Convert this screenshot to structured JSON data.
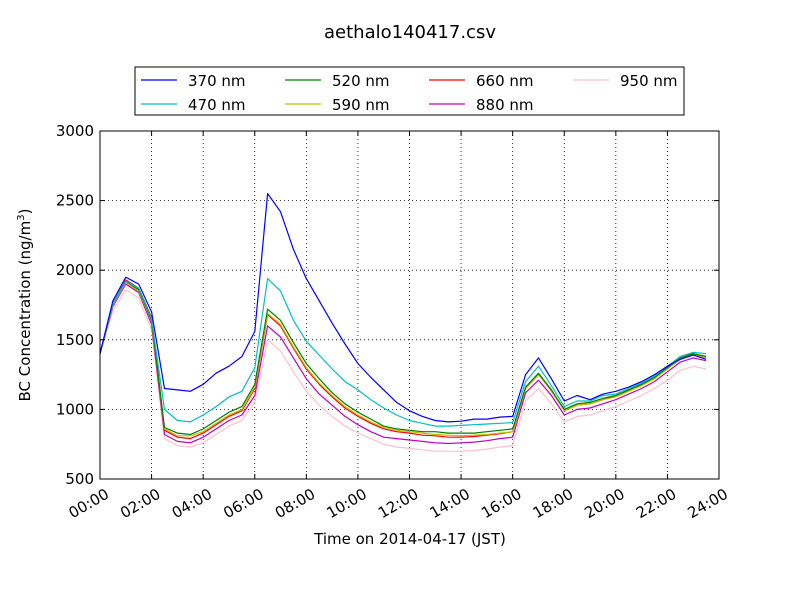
{
  "chart_data": {
    "type": "line",
    "title": "aethalo140417.csv",
    "xlabel": "Time on 2014-04-17 (JST)",
    "ylabel": "BC Concentration (ng/m",
    "ylabel_sup": "3",
    "ylabel_tail": ")",
    "xlim": [
      0,
      24
    ],
    "ylim": [
      500,
      3000
    ],
    "x_ticks": [
      0,
      2,
      4,
      6,
      8,
      10,
      12,
      14,
      16,
      18,
      20,
      22,
      24
    ],
    "x_tick_labels": [
      "00:00",
      "02:00",
      "04:00",
      "06:00",
      "08:00",
      "10:00",
      "12:00",
      "14:00",
      "16:00",
      "18:00",
      "20:00",
      "22:00",
      "24:00"
    ],
    "y_ticks": [
      500,
      1000,
      1500,
      2000,
      2500,
      3000
    ],
    "y_tick_labels": [
      "500",
      "1000",
      "1500",
      "2000",
      "2500",
      "3000"
    ],
    "grid": true,
    "legend_placement": "top-center",
    "x": [
      0,
      0.5,
      1,
      1.5,
      2,
      2.5,
      3,
      3.5,
      4,
      4.5,
      5,
      5.5,
      6,
      6.5,
      7,
      7.5,
      8,
      8.5,
      9,
      9.5,
      10,
      10.5,
      11,
      11.5,
      12,
      12.5,
      13,
      13.5,
      14,
      14.5,
      15,
      15.5,
      16,
      16.5,
      17,
      17.5,
      18,
      18.5,
      19,
      19.5,
      20,
      20.5,
      21,
      21.5,
      22,
      22.5,
      23,
      23.5
    ],
    "series": [
      {
        "name": "370 nm",
        "color": "#0000ff",
        "values": [
          1400,
          1780,
          1950,
          1900,
          1700,
          1150,
          1140,
          1130,
          1180,
          1260,
          1310,
          1380,
          1560,
          2550,
          2420,
          2150,
          1940,
          1780,
          1620,
          1470,
          1330,
          1230,
          1140,
          1050,
          990,
          950,
          920,
          910,
          915,
          930,
          930,
          945,
          950,
          1250,
          1370,
          1220,
          1060,
          1100,
          1070,
          1110,
          1130,
          1160,
          1200,
          1250,
          1310,
          1360,
          1390,
          1360
        ]
      },
      {
        "name": "470 nm",
        "color": "#00bfbf",
        "values": [
          1400,
          1760,
          1920,
          1870,
          1650,
          1000,
          920,
          910,
          960,
          1020,
          1090,
          1130,
          1300,
          1940,
          1850,
          1640,
          1490,
          1390,
          1290,
          1200,
          1140,
          1070,
          1010,
          960,
          920,
          900,
          880,
          880,
          885,
          890,
          895,
          900,
          905,
          1200,
          1310,
          1170,
          1020,
          1060,
          1060,
          1100,
          1110,
          1150,
          1190,
          1240,
          1310,
          1380,
          1410,
          1400
        ]
      },
      {
        "name": "520 nm",
        "color": "#007f00",
        "values": [
          1400,
          1760,
          1920,
          1860,
          1640,
          870,
          830,
          820,
          860,
          920,
          980,
          1020,
          1180,
          1720,
          1640,
          1480,
          1330,
          1220,
          1120,
          1040,
          980,
          930,
          880,
          860,
          850,
          840,
          840,
          830,
          830,
          830,
          840,
          850,
          860,
          1160,
          1260,
          1140,
          1000,
          1040,
          1050,
          1080,
          1100,
          1140,
          1180,
          1230,
          1300,
          1370,
          1400,
          1380
        ]
      },
      {
        "name": "590 nm",
        "color": "#bfbf00",
        "values": [
          1400,
          1750,
          1910,
          1850,
          1630,
          860,
          810,
          810,
          840,
          900,
          960,
          1000,
          1160,
          1690,
          1610,
          1450,
          1300,
          1190,
          1100,
          1020,
          960,
          910,
          870,
          850,
          840,
          830,
          820,
          815,
          810,
          815,
          820,
          830,
          840,
          1150,
          1250,
          1130,
          990,
          1030,
          1040,
          1070,
          1090,
          1130,
          1170,
          1220,
          1290,
          1360,
          1390,
          1370
        ]
      },
      {
        "name": "660 nm",
        "color": "#ff0000",
        "values": [
          1400,
          1760,
          1930,
          1870,
          1660,
          850,
          800,
          790,
          830,
          890,
          950,
          990,
          1150,
          1680,
          1600,
          1440,
          1290,
          1180,
          1090,
          1010,
          950,
          900,
          860,
          840,
          830,
          815,
          810,
          800,
          800,
          805,
          815,
          825,
          840,
          1150,
          1250,
          1140,
          990,
          1030,
          1040,
          1070,
          1100,
          1140,
          1180,
          1230,
          1300,
          1370,
          1400,
          1380
        ]
      },
      {
        "name": "880 nm",
        "color": "#bf00bf",
        "values": [
          1400,
          1740,
          1900,
          1840,
          1610,
          820,
          770,
          760,
          800,
          860,
          920,
          960,
          1100,
          1600,
          1520,
          1370,
          1220,
          1110,
          1030,
          950,
          890,
          840,
          800,
          790,
          780,
          770,
          760,
          755,
          760,
          765,
          775,
          790,
          800,
          1120,
          1210,
          1100,
          960,
          1000,
          1010,
          1040,
          1070,
          1110,
          1150,
          1200,
          1270,
          1340,
          1370,
          1350
        ]
      },
      {
        "name": "950 nm",
        "color": "#ffc0cb",
        "values": [
          1400,
          1710,
          1860,
          1800,
          1570,
          790,
          740,
          730,
          760,
          820,
          880,
          920,
          1050,
          1500,
          1420,
          1270,
          1130,
          1030,
          950,
          880,
          830,
          790,
          750,
          730,
          720,
          710,
          700,
          700,
          700,
          705,
          715,
          730,
          740,
          1060,
          1150,
          1040,
          910,
          950,
          960,
          990,
          1020,
          1060,
          1100,
          1150,
          1210,
          1280,
          1310,
          1290
        ]
      }
    ]
  }
}
